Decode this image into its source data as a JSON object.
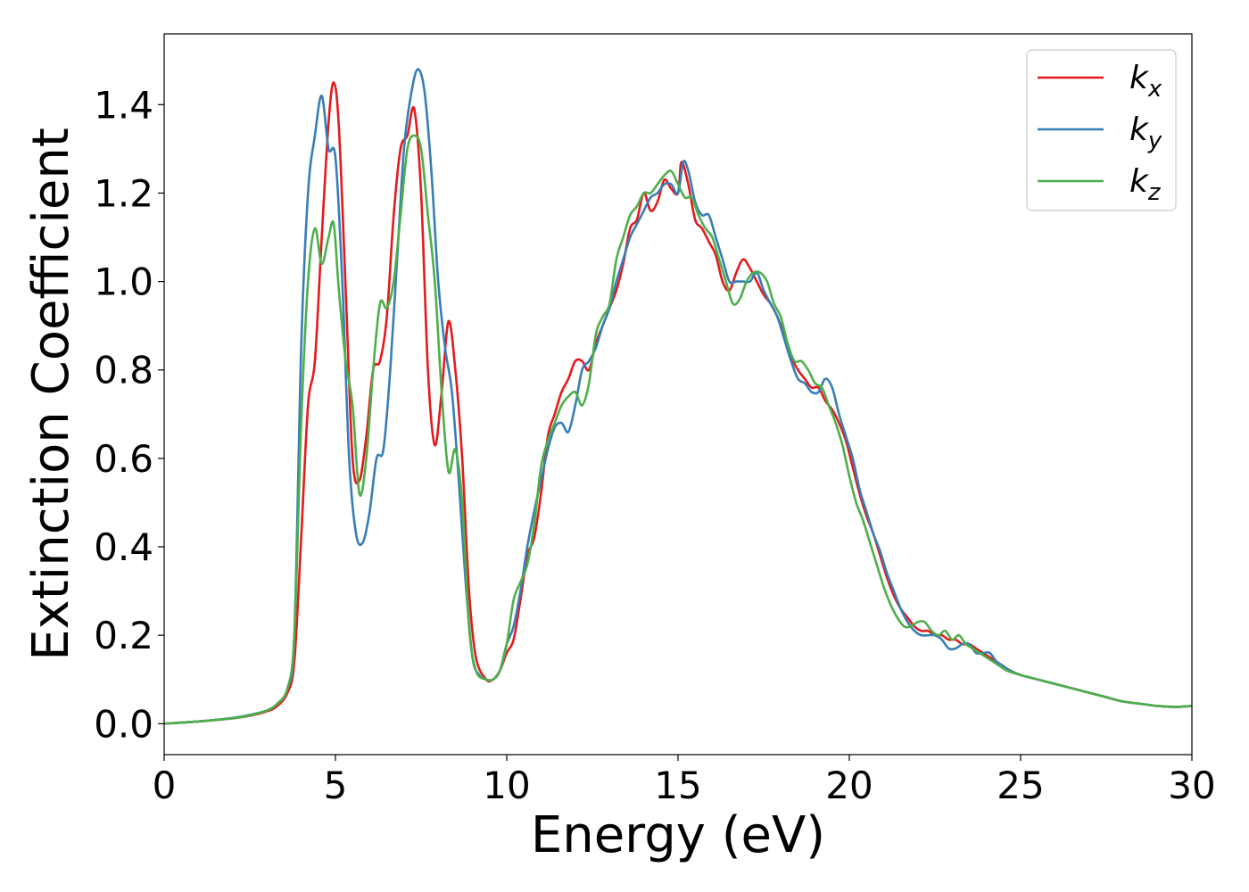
{
  "chart_data": {
    "type": "line",
    "title": "",
    "xlabel": "Energy (eV)",
    "ylabel": "Extinction Coefficient",
    "xlim": [
      0,
      30
    ],
    "ylim": [
      -0.07,
      1.56
    ],
    "xticks": [
      0,
      5,
      10,
      15,
      20,
      25,
      30
    ],
    "xtick_labels": [
      "0",
      "5",
      "10",
      "15",
      "20",
      "25",
      "30"
    ],
    "yticks": [
      0.0,
      0.2,
      0.4,
      0.6,
      0.8,
      1.0,
      1.2,
      1.4
    ],
    "ytick_labels": [
      "0.0",
      "0.2",
      "0.4",
      "0.6",
      "0.8",
      "1.0",
      "1.2",
      "1.4"
    ],
    "grid": false,
    "legend_position": "top-right",
    "series": [
      {
        "name": "k",
        "subscript": "x",
        "color": "#e41a1c",
        "x": [
          0,
          1,
          2,
          2.5,
          3,
          3.3,
          3.6,
          3.8,
          4.0,
          4.2,
          4.4,
          4.6,
          4.8,
          4.95,
          5.1,
          5.3,
          5.5,
          5.7,
          5.9,
          6.1,
          6.3,
          6.5,
          6.7,
          6.9,
          7.1,
          7.3,
          7.5,
          7.7,
          7.9,
          8.1,
          8.3,
          8.5,
          8.7,
          8.9,
          9.1,
          9.4,
          9.6,
          9.8,
          10.0,
          10.2,
          10.4,
          10.6,
          10.8,
          11.0,
          11.2,
          11.4,
          11.6,
          11.8,
          12.0,
          12.2,
          12.4,
          12.6,
          12.8,
          13.0,
          13.2,
          13.4,
          13.6,
          13.8,
          14.0,
          14.2,
          14.4,
          14.6,
          14.8,
          15.0,
          15.1,
          15.3,
          15.5,
          15.7,
          15.9,
          16.1,
          16.3,
          16.5,
          16.7,
          16.9,
          17.1,
          17.3,
          17.5,
          17.7,
          17.9,
          18.1,
          18.3,
          18.5,
          18.7,
          18.9,
          19.1,
          19.3,
          19.5,
          19.7,
          19.9,
          20.1,
          20.3,
          20.5,
          20.7,
          20.9,
          21.1,
          21.3,
          21.5,
          21.7,
          21.9,
          22.1,
          22.3,
          22.5,
          22.7,
          22.9,
          23.1,
          23.3,
          23.5,
          23.7,
          23.9,
          24.1,
          24.3,
          24.5,
          24.7,
          25.0,
          25.5,
          26.0,
          26.5,
          27.0,
          27.5,
          28.0,
          28.5,
          29.0,
          29.5,
          30.0
        ],
        "y": [
          0.0,
          0.005,
          0.012,
          0.018,
          0.028,
          0.04,
          0.07,
          0.14,
          0.42,
          0.72,
          0.82,
          1.1,
          1.36,
          1.45,
          1.35,
          0.98,
          0.6,
          0.55,
          0.65,
          0.8,
          0.82,
          0.92,
          1.15,
          1.3,
          1.33,
          1.39,
          1.2,
          0.8,
          0.63,
          0.75,
          0.91,
          0.8,
          0.6,
          0.3,
          0.15,
          0.1,
          0.1,
          0.12,
          0.16,
          0.19,
          0.28,
          0.38,
          0.42,
          0.52,
          0.65,
          0.7,
          0.75,
          0.78,
          0.82,
          0.82,
          0.8,
          0.86,
          0.9,
          0.94,
          0.98,
          1.04,
          1.12,
          1.14,
          1.2,
          1.16,
          1.18,
          1.23,
          1.21,
          1.2,
          1.27,
          1.22,
          1.14,
          1.12,
          1.09,
          1.06,
          1.0,
          0.98,
          1.02,
          1.05,
          1.03,
          1.0,
          0.97,
          0.95,
          0.92,
          0.88,
          0.83,
          0.8,
          0.78,
          0.76,
          0.76,
          0.73,
          0.71,
          0.68,
          0.64,
          0.58,
          0.52,
          0.47,
          0.43,
          0.38,
          0.33,
          0.29,
          0.26,
          0.24,
          0.22,
          0.21,
          0.21,
          0.2,
          0.2,
          0.19,
          0.19,
          0.18,
          0.18,
          0.17,
          0.16,
          0.15,
          0.14,
          0.13,
          0.12,
          0.11,
          0.1,
          0.09,
          0.08,
          0.07,
          0.06,
          0.05,
          0.045,
          0.04,
          0.038,
          0.04
        ]
      },
      {
        "name": "k",
        "subscript": "y",
        "color": "#377eb8",
        "x": [
          0,
          1,
          2,
          2.5,
          3,
          3.3,
          3.6,
          3.8,
          4.0,
          4.2,
          4.4,
          4.6,
          4.8,
          5.0,
          5.2,
          5.4,
          5.6,
          5.8,
          6.0,
          6.2,
          6.4,
          6.6,
          6.8,
          7.0,
          7.2,
          7.4,
          7.6,
          7.8,
          8.0,
          8.2,
          8.4,
          8.6,
          8.8,
          9.0,
          9.2,
          9.4,
          9.6,
          9.8,
          10.0,
          10.2,
          10.4,
          10.6,
          10.8,
          11.0,
          11.2,
          11.4,
          11.6,
          11.8,
          12.0,
          12.2,
          12.4,
          12.6,
          12.8,
          13.0,
          13.2,
          13.4,
          13.6,
          13.8,
          14.0,
          14.2,
          14.4,
          14.6,
          14.8,
          15.0,
          15.15,
          15.3,
          15.5,
          15.7,
          15.9,
          16.1,
          16.3,
          16.5,
          16.7,
          16.9,
          17.1,
          17.3,
          17.5,
          17.7,
          17.9,
          18.1,
          18.3,
          18.5,
          18.7,
          18.9,
          19.1,
          19.3,
          19.5,
          19.7,
          19.9,
          20.1,
          20.3,
          20.5,
          20.7,
          20.9,
          21.1,
          21.3,
          21.5,
          21.7,
          21.9,
          22.1,
          22.3,
          22.5,
          22.7,
          22.9,
          23.1,
          23.3,
          23.5,
          23.7,
          23.9,
          24.1,
          24.3,
          24.5,
          24.7,
          25.0,
          25.5,
          26.0,
          26.5,
          27.0,
          27.5,
          28.0,
          28.5,
          29.0,
          29.5,
          30.0
        ],
        "y": [
          0.0,
          0.005,
          0.013,
          0.02,
          0.03,
          0.045,
          0.08,
          0.2,
          0.85,
          1.2,
          1.33,
          1.42,
          1.3,
          1.28,
          1.0,
          0.6,
          0.43,
          0.41,
          0.48,
          0.6,
          0.62,
          0.8,
          1.05,
          1.3,
          1.42,
          1.48,
          1.43,
          1.25,
          1.0,
          0.85,
          0.75,
          0.55,
          0.32,
          0.15,
          0.11,
          0.1,
          0.1,
          0.12,
          0.18,
          0.22,
          0.3,
          0.4,
          0.48,
          0.55,
          0.62,
          0.67,
          0.68,
          0.66,
          0.72,
          0.8,
          0.82,
          0.85,
          0.9,
          0.94,
          1.0,
          1.05,
          1.1,
          1.13,
          1.16,
          1.19,
          1.2,
          1.22,
          1.22,
          1.2,
          1.27,
          1.25,
          1.18,
          1.15,
          1.15,
          1.1,
          1.05,
          1.0,
          1.0,
          1.0,
          1.0,
          1.02,
          0.98,
          0.95,
          0.92,
          0.87,
          0.82,
          0.78,
          0.77,
          0.75,
          0.75,
          0.78,
          0.76,
          0.7,
          0.65,
          0.6,
          0.53,
          0.48,
          0.43,
          0.39,
          0.34,
          0.3,
          0.26,
          0.23,
          0.21,
          0.2,
          0.2,
          0.2,
          0.19,
          0.17,
          0.17,
          0.18,
          0.18,
          0.16,
          0.16,
          0.16,
          0.14,
          0.13,
          0.12,
          0.11,
          0.1,
          0.09,
          0.08,
          0.07,
          0.06,
          0.05,
          0.045,
          0.04,
          0.038,
          0.04
        ]
      },
      {
        "name": "k",
        "subscript": "z",
        "color": "#4daf4a",
        "x": [
          0,
          1,
          2,
          2.5,
          3,
          3.3,
          3.6,
          3.8,
          4.0,
          4.2,
          4.4,
          4.6,
          4.8,
          4.95,
          5.1,
          5.3,
          5.5,
          5.7,
          5.9,
          6.1,
          6.3,
          6.5,
          6.7,
          6.9,
          7.1,
          7.3,
          7.5,
          7.7,
          7.9,
          8.1,
          8.3,
          8.5,
          8.7,
          8.9,
          9.1,
          9.4,
          9.6,
          9.8,
          10.0,
          10.2,
          10.4,
          10.6,
          10.8,
          11.0,
          11.2,
          11.4,
          11.6,
          11.8,
          12.0,
          12.2,
          12.4,
          12.6,
          12.8,
          13.0,
          13.2,
          13.4,
          13.6,
          13.8,
          14.0,
          14.2,
          14.4,
          14.6,
          14.8,
          15.0,
          15.2,
          15.4,
          15.6,
          15.8,
          16.0,
          16.2,
          16.4,
          16.6,
          16.8,
          17.0,
          17.2,
          17.4,
          17.6,
          17.8,
          18.0,
          18.2,
          18.4,
          18.6,
          18.8,
          19.0,
          19.2,
          19.4,
          19.6,
          19.8,
          20.0,
          20.2,
          20.4,
          20.6,
          20.8,
          21.0,
          21.2,
          21.4,
          21.6,
          21.8,
          22.0,
          22.2,
          22.4,
          22.6,
          22.8,
          23.0,
          23.2,
          23.4,
          23.6,
          23.8,
          24.0,
          24.2,
          24.4,
          24.6,
          25.0,
          25.5,
          26.0,
          26.5,
          27.0,
          27.5,
          28.0,
          28.5,
          29.0,
          29.5,
          30.0
        ],
        "y": [
          0.0,
          0.005,
          0.012,
          0.019,
          0.03,
          0.045,
          0.08,
          0.2,
          0.68,
          1.0,
          1.12,
          1.04,
          1.1,
          1.13,
          0.98,
          0.82,
          0.72,
          0.52,
          0.6,
          0.8,
          0.95,
          0.94,
          1.0,
          1.15,
          1.3,
          1.33,
          1.3,
          1.15,
          1.0,
          0.75,
          0.57,
          0.62,
          0.5,
          0.22,
          0.12,
          0.1,
          0.1,
          0.12,
          0.18,
          0.28,
          0.32,
          0.36,
          0.45,
          0.58,
          0.64,
          0.68,
          0.72,
          0.74,
          0.75,
          0.72,
          0.77,
          0.88,
          0.92,
          0.95,
          1.05,
          1.1,
          1.15,
          1.17,
          1.2,
          1.2,
          1.22,
          1.24,
          1.25,
          1.22,
          1.19,
          1.19,
          1.15,
          1.12,
          1.1,
          1.05,
          1.0,
          0.95,
          0.96,
          1.0,
          1.02,
          1.02,
          1.0,
          0.95,
          0.92,
          0.86,
          0.82,
          0.82,
          0.8,
          0.77,
          0.76,
          0.72,
          0.68,
          0.63,
          0.56,
          0.5,
          0.46,
          0.41,
          0.36,
          0.31,
          0.27,
          0.24,
          0.22,
          0.22,
          0.23,
          0.23,
          0.21,
          0.2,
          0.21,
          0.19,
          0.2,
          0.18,
          0.17,
          0.16,
          0.15,
          0.14,
          0.13,
          0.12,
          0.11,
          0.1,
          0.09,
          0.08,
          0.07,
          0.06,
          0.05,
          0.045,
          0.04,
          0.038,
          0.04
        ]
      }
    ]
  }
}
